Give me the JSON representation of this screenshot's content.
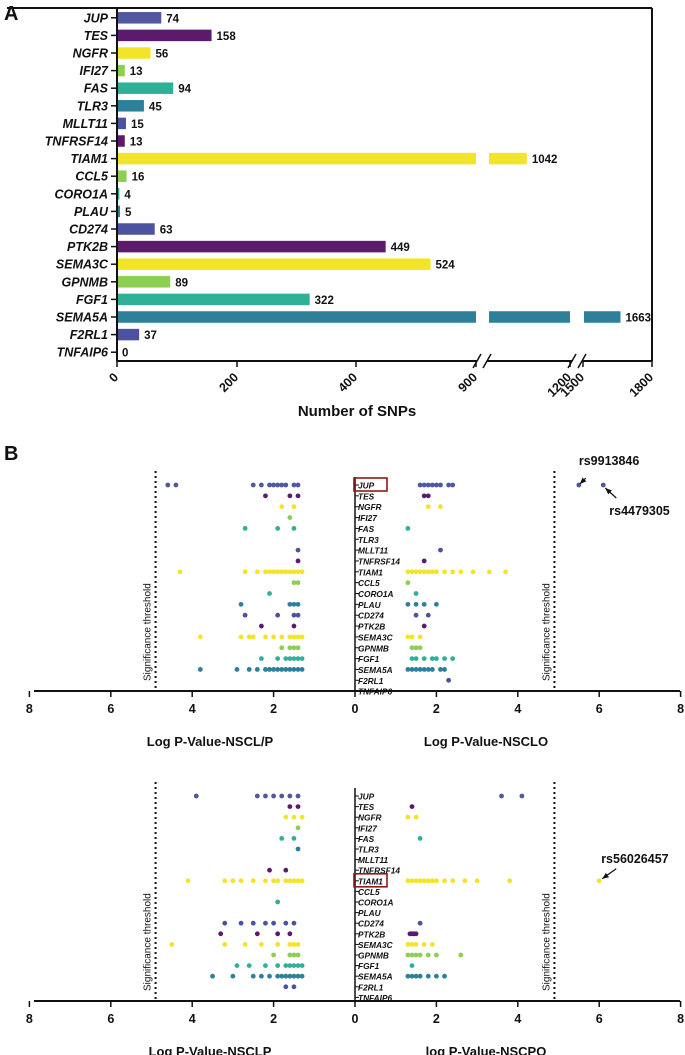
{
  "panel_a": {
    "label": "A",
    "xlabel": "Number of SNPs",
    "ticks": [
      {
        "pos": "0",
        "label": "0"
      },
      {
        "pos": "200",
        "label": "200"
      },
      {
        "pos": "400",
        "label": "400"
      },
      {
        "pos": "break1",
        "label": "900"
      },
      {
        "pos": "break2",
        "label": "1200"
      },
      {
        "pos": "break2b",
        "label": "1500"
      },
      {
        "pos": "end",
        "label": "1800"
      }
    ]
  },
  "chart_data": [
    {
      "type": "bar",
      "orientation": "horizontal",
      "title": "",
      "xlabel": "Number of SNPs",
      "ylabel": "",
      "axis_break": true,
      "segments": [
        [
          0,
          600
        ],
        [
          900,
          1200
        ],
        [
          1500,
          1800
        ]
      ],
      "categories": [
        "JUP",
        "TES",
        "NGFR",
        "IFI27",
        "FAS",
        "TLR3",
        "MLLT11",
        "TNFRSF14",
        "TIAM1",
        "CCL5",
        "CORO1A",
        "PLAU",
        "CD274",
        "PTK2B",
        "SEMA3C",
        "GPNMB",
        "FGF1",
        "SEMA5A",
        "F2RL1",
        "TNFAIP6"
      ],
      "values": [
        74,
        158,
        56,
        13,
        94,
        45,
        15,
        13,
        1042,
        16,
        4,
        5,
        63,
        449,
        524,
        89,
        322,
        1663,
        37,
        0
      ],
      "colors": [
        "#5058a0",
        "#5c1a6c",
        "#f2e528",
        "#8ccf52",
        "#2fb198",
        "#2e7f9a",
        "#4d52a0",
        "#5c1a6c",
        "#f2e528",
        "#8ccf52",
        "#2fb198",
        "#2e7f9a",
        "#4d52a0",
        "#5c1a6c",
        "#f2e528",
        "#8ccf52",
        "#2fb198",
        "#2e7f9a",
        "#4d52a0",
        "#5c1a6c"
      ]
    },
    {
      "type": "scatter",
      "title": "",
      "xlabel_left": "Log P-Value-NSCL/P",
      "xlabel_right": "Log P-Value-NSCLO",
      "xticks": [
        "8",
        "6",
        "4",
        "2",
        "0",
        "2",
        "4",
        "6",
        "8"
      ],
      "xlim": [
        -8,
        8
      ],
      "threshold": 4.9,
      "threshold_label": "Significance threshold",
      "highlight_gene": "JUP",
      "annotations": [
        {
          "text": "rs9913846",
          "gene": "JUP",
          "x": 5.5
        },
        {
          "text": "rs4479305",
          "gene": "JUP",
          "x": 6.1
        }
      ],
      "left_series": {
        "JUP": [
          4.6,
          4.4,
          2.5,
          2.3,
          2.1,
          1.9,
          1.7,
          1.5,
          1.4,
          2.0,
          1.8
        ],
        "TES": [
          2.2,
          1.6,
          1.4
        ],
        "NGFR": [
          1.8,
          1.5
        ],
        "IFI27": [
          1.6
        ],
        "FAS": [
          2.7,
          1.9,
          1.5
        ],
        "TLR3": [],
        "MLLT11": [
          1.4
        ],
        "TNFRSF14": [
          1.4
        ],
        "TIAM1": [
          4.3,
          2.7,
          2.4,
          2.2,
          2.0,
          1.8,
          1.6,
          1.5,
          1.4,
          1.3,
          2.1,
          1.9,
          1.7
        ],
        "CCL5": [
          1.5,
          1.4
        ],
        "CORO1A": [
          2.1
        ],
        "PLAU": [
          2.8,
          1.6,
          1.5,
          1.4
        ],
        "CD274": [
          2.7,
          1.9,
          1.5,
          1.4
        ],
        "PTK2B": [
          2.3,
          1.5
        ],
        "SEMA3C": [
          3.8,
          2.8,
          2.5,
          2.2,
          2.0,
          1.8,
          1.6,
          1.5,
          1.4,
          1.3,
          2.6
        ],
        "GPNMB": [
          1.8,
          1.6,
          1.5,
          1.4
        ],
        "FGF1": [
          2.3,
          1.9,
          1.7,
          1.6,
          1.5,
          1.4,
          1.3
        ],
        "SEMA5A": [
          3.8,
          2.9,
          2.6,
          2.4,
          2.2,
          2.0,
          1.8,
          1.7,
          1.6,
          1.5,
          1.4,
          1.3,
          2.1,
          1.9
        ],
        "F2RL1": [],
        "TNFAIP6": []
      },
      "right_series": {
        "JUP": [
          5.5,
          6.1,
          2.4,
          2.3,
          2.1,
          2.0,
          1.9,
          1.8,
          1.7,
          1.6
        ],
        "TES": [
          1.8,
          1.7
        ],
        "NGFR": [
          2.1,
          1.8
        ],
        "IFI27": [],
        "FAS": [
          1.3
        ],
        "TLR3": [],
        "MLLT11": [
          2.1
        ],
        "TNFRSF14": [
          1.7
        ],
        "TIAM1": [
          3.7,
          3.3,
          2.6,
          2.4,
          2.2,
          2.0,
          1.9,
          1.8,
          1.7,
          1.6,
          1.5,
          1.4,
          1.3,
          2.9
        ],
        "CCL5": [
          1.3
        ],
        "CORO1A": [
          1.5
        ],
        "PLAU": [
          2.0,
          1.7,
          1.5,
          1.3
        ],
        "CD274": [
          1.8,
          1.5
        ],
        "PTK2B": [
          1.7
        ],
        "SEMA3C": [
          1.6,
          1.4,
          1.3
        ],
        "GPNMB": [
          1.6,
          1.5,
          1.4
        ],
        "FGF1": [
          2.4,
          2.2,
          2.0,
          1.9,
          1.7,
          1.5,
          1.4
        ],
        "SEMA5A": [
          2.2,
          2.1,
          1.9,
          1.8,
          1.7,
          1.6,
          1.5,
          1.4,
          1.3
        ],
        "F2RL1": [
          2.3
        ],
        "TNFAIP6": []
      }
    },
    {
      "type": "scatter",
      "title": "",
      "xlabel_left": "Log P-Value-NSCLP",
      "xlabel_right": "log P-Value-NSCPO",
      "xticks": [
        "8",
        "6",
        "4",
        "2",
        "0",
        "2",
        "4",
        "6",
        "8"
      ],
      "xlim": [
        -8,
        8
      ],
      "threshold": 4.9,
      "threshold_label": "Significance threshold",
      "highlight_gene": "TIAM1",
      "annotations": [
        {
          "text": "rs56026457",
          "gene": "TIAM1",
          "x": 6.0
        }
      ],
      "left_series": {
        "JUP": [
          3.9,
          2.4,
          2.2,
          2.0,
          1.8,
          1.6,
          1.4
        ],
        "TES": [
          1.6,
          1.4
        ],
        "NGFR": [
          1.7,
          1.5,
          1.3
        ],
        "IFI27": [
          1.4
        ],
        "FAS": [
          1.8,
          1.5
        ],
        "TLR3": [
          1.4
        ],
        "MLLT11": [],
        "TNFRSF14": [
          2.1,
          1.7
        ],
        "TIAM1": [
          4.1,
          3.2,
          2.8,
          2.5,
          2.2,
          2.0,
          1.9,
          1.7,
          1.6,
          1.5,
          1.4,
          1.3,
          3.0
        ],
        "CCL5": [],
        "CORO1A": [
          1.9
        ],
        "PLAU": [],
        "CD274": [
          3.2,
          2.8,
          2.5,
          2.2,
          2.0,
          1.7,
          1.5
        ],
        "PTK2B": [
          3.3,
          2.4,
          1.9,
          1.6
        ],
        "SEMA3C": [
          4.5,
          3.2,
          2.7,
          2.3,
          1.9,
          1.6,
          1.5,
          1.4
        ],
        "GPNMB": [
          2.0,
          1.6,
          1.5,
          1.4
        ],
        "FGF1": [
          2.9,
          2.6,
          2.2,
          1.9,
          1.7,
          1.6,
          1.5,
          1.4,
          1.3
        ],
        "SEMA5A": [
          3.5,
          3.0,
          2.5,
          2.3,
          2.1,
          1.9,
          1.8,
          1.7,
          1.6,
          1.5,
          1.4,
          1.3
        ],
        "F2RL1": [
          1.7,
          1.5
        ],
        "TNFAIP6": []
      },
      "right_series": {
        "JUP": [
          3.6,
          4.1
        ],
        "TES": [
          1.4
        ],
        "NGFR": [
          1.5,
          1.3
        ],
        "IFI27": [],
        "FAS": [
          1.6
        ],
        "TLR3": [],
        "MLLT11": [],
        "TNFRSF14": [],
        "TIAM1": [
          6.0,
          3.8,
          3.0,
          2.7,
          2.4,
          2.2,
          2.0,
          1.9,
          1.8,
          1.7,
          1.6,
          1.5,
          1.4,
          1.3
        ],
        "CCL5": [],
        "CORO1A": [],
        "PLAU": [],
        "CD274": [
          1.6
        ],
        "PTK2B": [
          1.5,
          1.4,
          1.35,
          1.45
        ],
        "SEMA3C": [
          1.9,
          1.7,
          1.5,
          1.4,
          1.3
        ],
        "GPNMB": [
          2.6,
          2.0,
          1.8,
          1.6,
          1.5,
          1.4,
          1.3
        ],
        "FGF1": [
          1.4
        ],
        "SEMA5A": [
          2.2,
          2.0,
          1.8,
          1.6,
          1.5,
          1.4,
          1.3
        ],
        "F2RL1": [],
        "TNFAIP6": []
      }
    }
  ],
  "panel_b": {
    "label": "B"
  }
}
